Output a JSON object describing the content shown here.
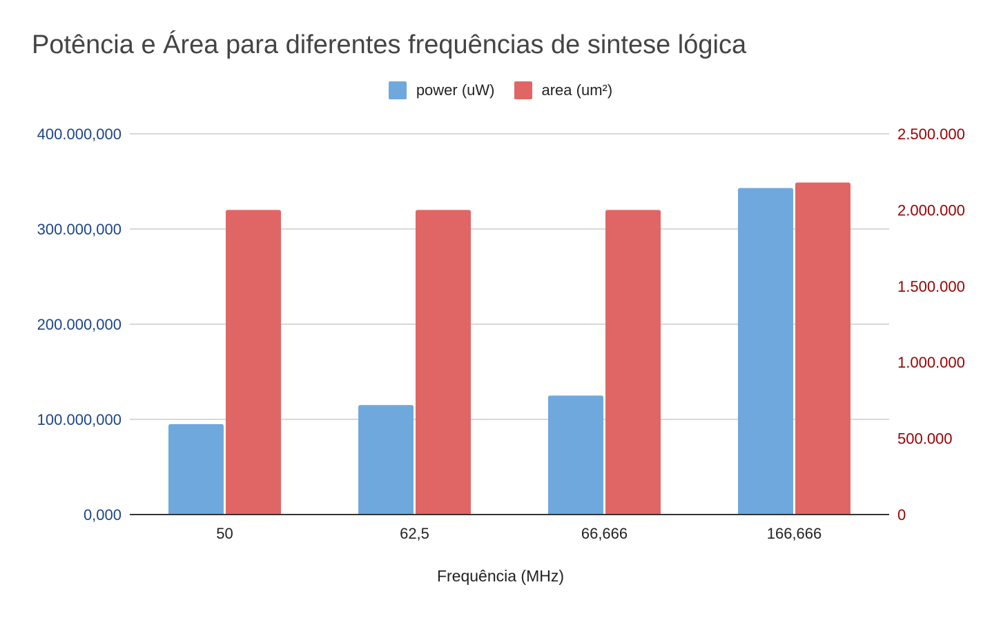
{
  "chart_data": {
    "type": "bar",
    "title": "Potência e Área para diferentes frequências de sintese lógica",
    "xlabel": "Frequência (MHz)",
    "categories": [
      "50",
      "62,5",
      "66,666",
      "166,666"
    ],
    "series": [
      {
        "name": "power (uW)",
        "axis": "left",
        "color": "#6fa8dc",
        "values": [
          95000000,
          115000000,
          125000000,
          343000000
        ]
      },
      {
        "name": "area (um²)",
        "axis": "right",
        "color": "#e06666",
        "values": [
          2000000,
          2000000,
          2000000,
          2180000
        ]
      }
    ],
    "y_left": {
      "ylim": [
        0,
        400000000
      ],
      "ticks": [
        "0,000",
        "100.000,000",
        "200.000,000",
        "300.000,000",
        "400.000,000"
      ],
      "color": "#1c4587"
    },
    "y_right": {
      "ylim": [
        0,
        2500000
      ],
      "ticks": [
        "0",
        "500.000",
        "1.000.000",
        "1.500.000",
        "2.000.000",
        "2.500.000"
      ],
      "color": "#990000"
    },
    "grid": true,
    "legend_position": "top-center"
  }
}
